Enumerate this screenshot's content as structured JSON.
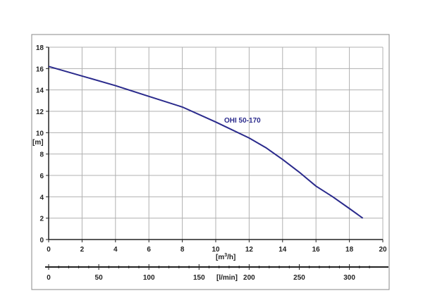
{
  "chart_data": {
    "type": "line",
    "title": "",
    "xlabel": "m3/h",
    "xlabel_prefix": "[m",
    "xlabel_sup": "3",
    "xlabel_suffix": "/h]",
    "ylabel": "[m]",
    "secondary_xlabel": "[l/min]",
    "xlim": [
      0,
      20
    ],
    "ylim": [
      0,
      18
    ],
    "secondary_xlim": [
      0,
      333.33
    ],
    "x_ticks": [
      "0",
      "2",
      "4",
      "6",
      "8",
      "10",
      "12",
      "14",
      "16",
      "18",
      "20"
    ],
    "y_ticks": [
      "0",
      "2",
      "4",
      "6",
      "8",
      "10",
      "12",
      "14",
      "16",
      "18"
    ],
    "secondary_ticks": [
      {
        "value": 0,
        "label": "0"
      },
      {
        "value": 50,
        "label": "50"
      },
      {
        "value": 100,
        "label": "100"
      },
      {
        "value": 150,
        "label": "150"
      },
      {
        "value": 200,
        "label": "200"
      },
      {
        "value": 250,
        "label": "250"
      },
      {
        "value": 300,
        "label": "300"
      }
    ],
    "grid": true,
    "series": [
      {
        "name": "OHI 50-170",
        "color": "#2a2a8c",
        "x": [
          0,
          2,
          4,
          6,
          8,
          10,
          12,
          13,
          14,
          15,
          16,
          17,
          18,
          18.8
        ],
        "y": [
          16.2,
          15.3,
          14.4,
          13.4,
          12.4,
          11.0,
          9.5,
          8.6,
          7.5,
          6.3,
          5.0,
          4.0,
          2.9,
          2.0
        ]
      }
    ],
    "colors": {
      "grid": "#b0b0b0",
      "axis": "#222222",
      "frame": "#888888"
    }
  }
}
